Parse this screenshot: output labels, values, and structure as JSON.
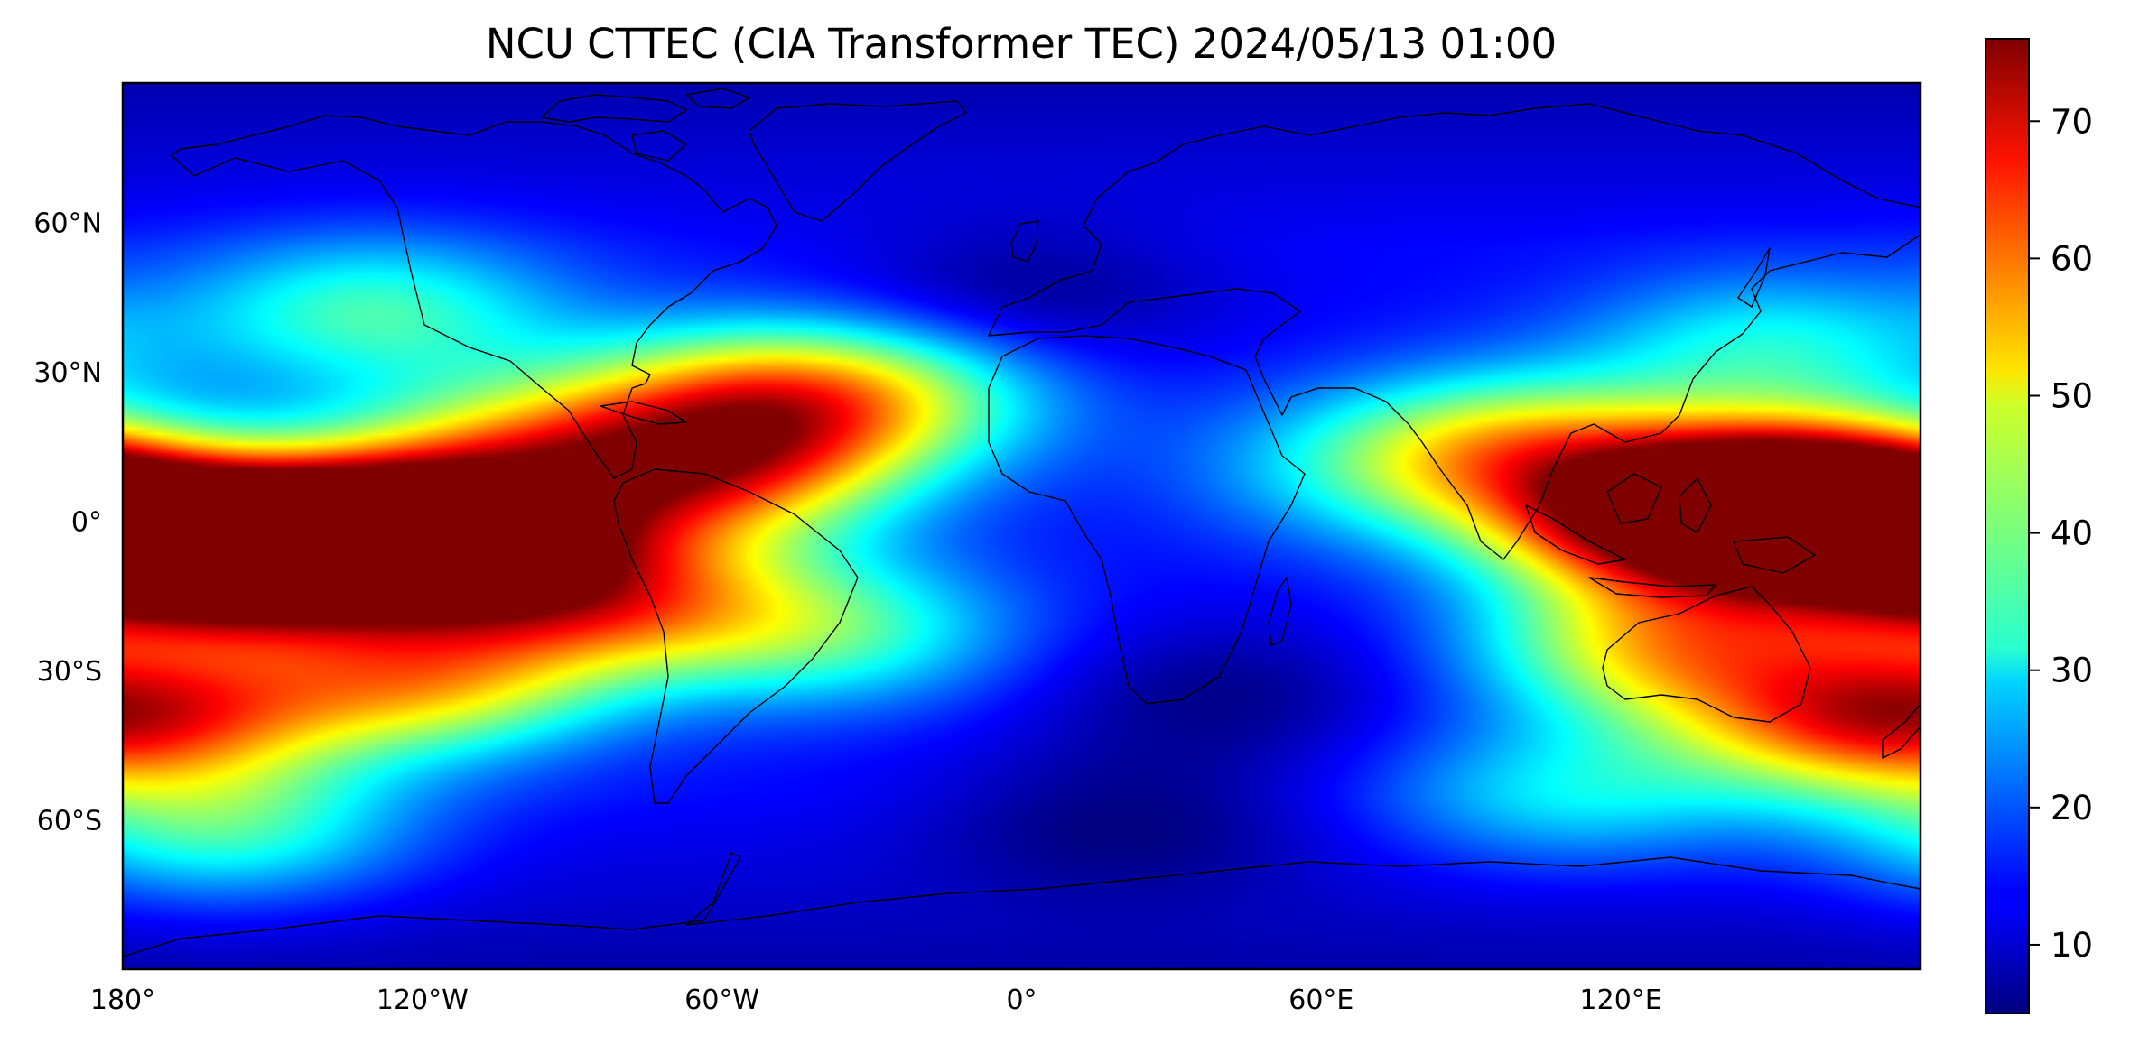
{
  "title": "NCU CTTEC (CIA Transformer TEC) 2024/05/13 01:00",
  "map": {
    "x_ticks": [
      {
        "value": -180,
        "label": "180°"
      },
      {
        "value": -120,
        "label": "120°W"
      },
      {
        "value": -60,
        "label": "60°W"
      },
      {
        "value": 0,
        "label": "0°"
      },
      {
        "value": 60,
        "label": "60°E"
      },
      {
        "value": 120,
        "label": "120°E"
      }
    ],
    "y_ticks": [
      {
        "value": 60,
        "label": "60°N"
      },
      {
        "value": 30,
        "label": "30°N"
      },
      {
        "value": 0,
        "label": "0°"
      },
      {
        "value": -30,
        "label": "30°S"
      },
      {
        "value": -60,
        "label": "60°S"
      }
    ],
    "lon_range": [
      -180,
      180
    ],
    "lat_range": [
      -90,
      88
    ]
  },
  "colorbar": {
    "colormap": "jet",
    "range": [
      5,
      76
    ],
    "ticks": [
      {
        "value": 10,
        "label": "10"
      },
      {
        "value": 20,
        "label": "20"
      },
      {
        "value": 30,
        "label": "30"
      },
      {
        "value": 40,
        "label": "40"
      },
      {
        "value": 50,
        "label": "50"
      },
      {
        "value": 60,
        "label": "60"
      },
      {
        "value": 70,
        "label": "70"
      }
    ]
  },
  "tec_field": {
    "background": 14,
    "features": [
      {
        "lon": -150,
        "lat": -5,
        "amp": 72
      },
      {
        "lon": -118,
        "lat": -2,
        "amp": 62
      },
      {
        "lon": -178,
        "lat": -8,
        "amp": 40
      },
      {
        "lon": -120,
        "lat": -32,
        "amp": 34
      },
      {
        "lon": -170,
        "lat": -38,
        "amp": 28
      },
      {
        "lon": -100,
        "lat": 15,
        "amp": 24
      },
      {
        "lon": -85,
        "lat": -15,
        "amp": 36
      },
      {
        "lon": -62,
        "lat": 10,
        "amp": 38
      },
      {
        "lon": -55,
        "lat": 25,
        "amp": 26
      },
      {
        "lon": -30,
        "lat": 25,
        "amp": 22
      },
      {
        "lon": -40,
        "lat": -22,
        "amp": 22
      },
      {
        "lon": -130,
        "lat": 42,
        "amp": 22
      },
      {
        "lon": -160,
        "lat": -62,
        "amp": 22
      },
      {
        "lon": 160,
        "lat": 5,
        "amp": 74
      },
      {
        "lon": 130,
        "lat": 0,
        "amp": 50
      },
      {
        "lon": 130,
        "lat": -25,
        "amp": 34
      },
      {
        "lon": 100,
        "lat": 15,
        "amp": 30
      },
      {
        "lon": 165,
        "lat": -40,
        "amp": 32
      },
      {
        "lon": 70,
        "lat": 10,
        "amp": 12
      },
      {
        "lon": 150,
        "lat": 35,
        "amp": 18
      },
      {
        "lon": 110,
        "lat": -55,
        "amp": 16
      },
      {
        "lon": 0,
        "lat": 45,
        "amp": -8
      },
      {
        "lon": 40,
        "lat": -35,
        "amp": -8
      },
      {
        "lon": 20,
        "lat": -60,
        "amp": -8
      }
    ]
  }
}
